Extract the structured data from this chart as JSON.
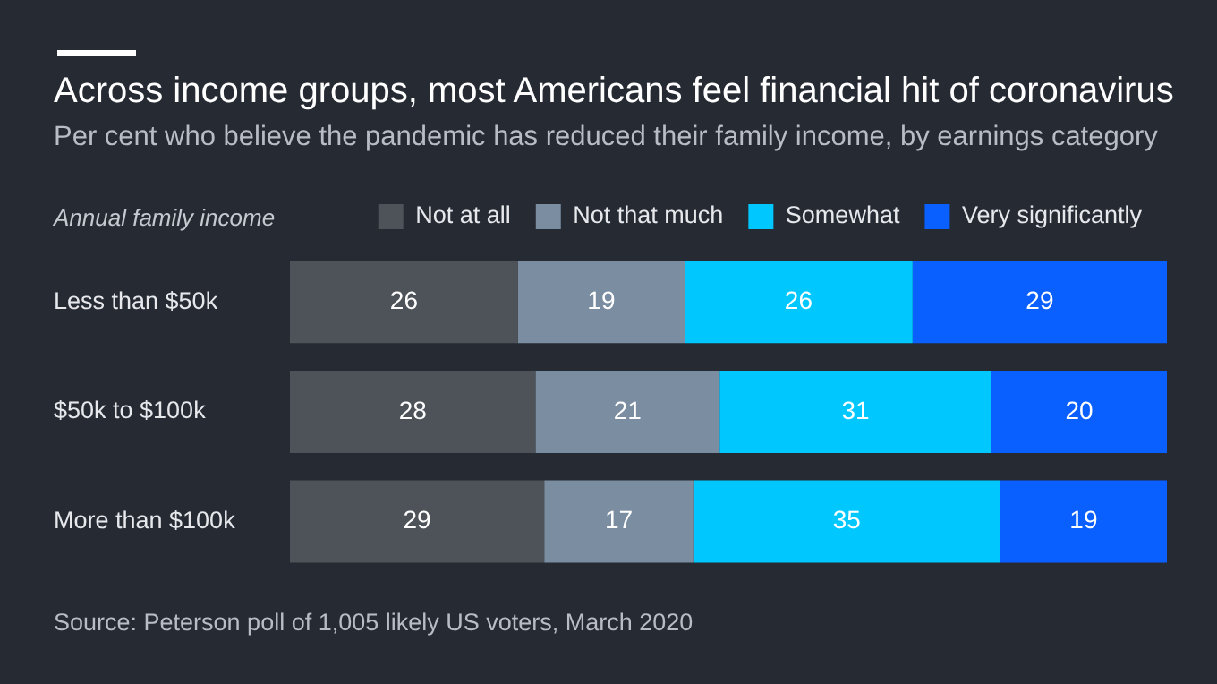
{
  "chart_data": {
    "type": "bar",
    "orientation": "horizontal",
    "stacked": true,
    "title": "Across income groups, most Americans feel financial hit of coronavirus",
    "subtitle": "Per cent who believe the pandemic has reduced their family income, by earnings category",
    "ylabel": "Annual family income",
    "categories": [
      "Less than $50k",
      "$50k to $100k",
      "More than $100k"
    ],
    "series": [
      {
        "name": "Not at all",
        "color": "#4e5359",
        "values": [
          26,
          28,
          29
        ]
      },
      {
        "name": "Not that much",
        "color": "#7a8da1",
        "values": [
          19,
          21,
          17
        ]
      },
      {
        "name": "Somewhat",
        "color": "#00c8ff",
        "values": [
          26,
          31,
          35
        ]
      },
      {
        "name": "Very significantly",
        "color": "#0a5fff",
        "values": [
          29,
          20,
          19
        ]
      }
    ],
    "xlim": [
      0,
      100
    ],
    "tick_labels": "y",
    "grid": false,
    "legend": "top",
    "data_labels": true,
    "annotations": [
      "Source: Peterson poll of 1,005 likely US voters, March 2020"
    ]
  }
}
